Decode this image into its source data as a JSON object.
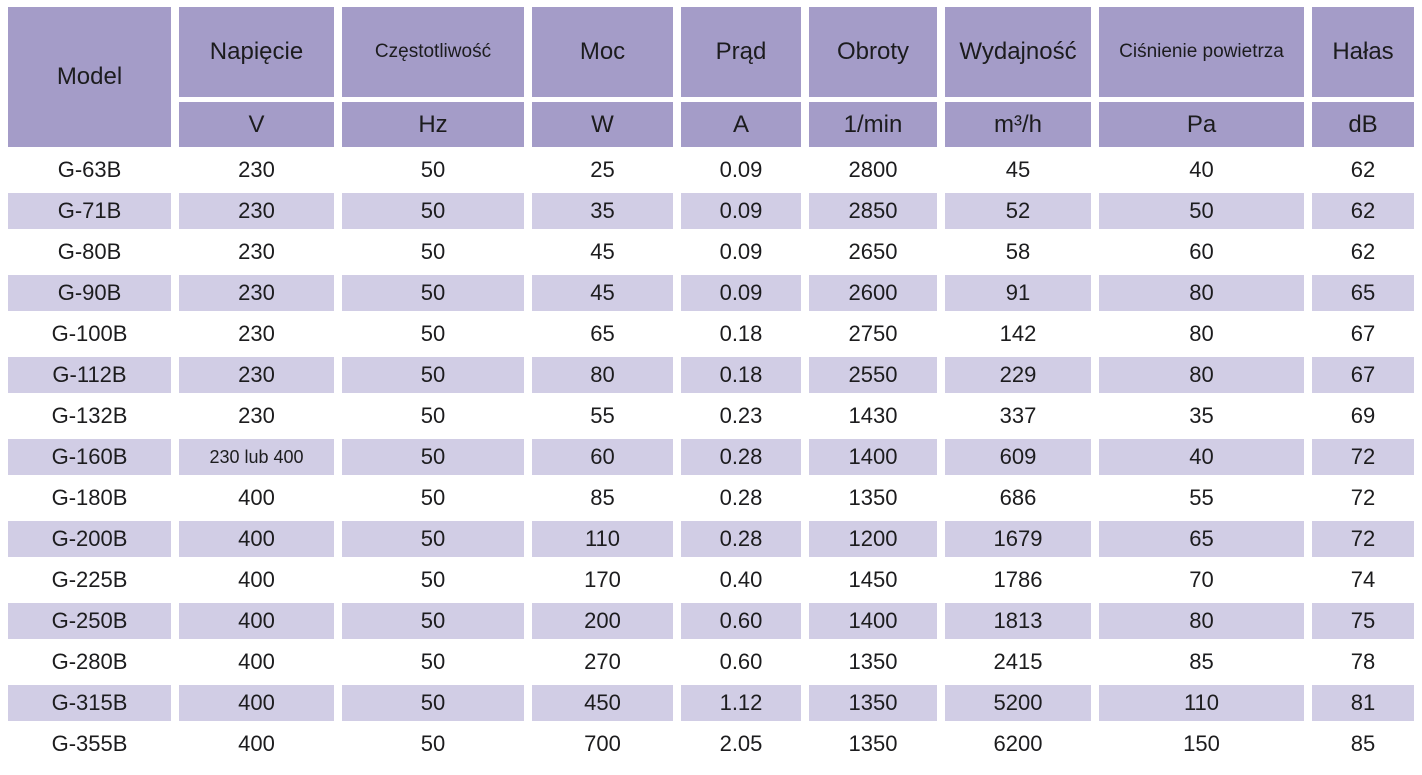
{
  "colors": {
    "header_bg": "#a49cc8",
    "stripe_bg": "#d1cde5",
    "text": "#1c1c1e",
    "page_bg": "#ffffff"
  },
  "table": {
    "columns": [
      {
        "label": "Model",
        "unit": ""
      },
      {
        "label": "Napięcie",
        "unit": "V"
      },
      {
        "label": "Częstotliwość",
        "unit": "Hz"
      },
      {
        "label": "Moc",
        "unit": "W"
      },
      {
        "label": "Prąd",
        "unit": "A"
      },
      {
        "label": "Obroty",
        "unit": "1/min"
      },
      {
        "label": "Wydajność",
        "unit": "m³/h"
      },
      {
        "label": "Ciśnienie powietrza",
        "unit": "Pa"
      },
      {
        "label": "Hałas",
        "unit": "dB"
      }
    ],
    "rows": [
      [
        "G-63B",
        "230",
        "50",
        "25",
        "0.09",
        "2800",
        "45",
        "40",
        "62"
      ],
      [
        "G-71B",
        "230",
        "50",
        "35",
        "0.09",
        "2850",
        "52",
        "50",
        "62"
      ],
      [
        "G-80B",
        "230",
        "50",
        "45",
        "0.09",
        "2650",
        "58",
        "60",
        "62"
      ],
      [
        "G-90B",
        "230",
        "50",
        "45",
        "0.09",
        "2600",
        "91",
        "80",
        "65"
      ],
      [
        "G-100B",
        "230",
        "50",
        "65",
        "0.18",
        "2750",
        "142",
        "80",
        "67"
      ],
      [
        "G-112B",
        "230",
        "50",
        "80",
        "0.18",
        "2550",
        "229",
        "80",
        "67"
      ],
      [
        "G-132B",
        "230",
        "50",
        "55",
        "0.23",
        "1430",
        "337",
        "35",
        "69"
      ],
      [
        "G-160B",
        "230 lub 400",
        "50",
        "60",
        "0.28",
        "1400",
        "609",
        "40",
        "72"
      ],
      [
        "G-180B",
        "400",
        "50",
        "85",
        "0.28",
        "1350",
        "686",
        "55",
        "72"
      ],
      [
        "G-200B",
        "400",
        "50",
        "110",
        "0.28",
        "1200",
        "1679",
        "65",
        "72"
      ],
      [
        "G-225B",
        "400",
        "50",
        "170",
        "0.40",
        "1450",
        "1786",
        "70",
        "74"
      ],
      [
        "G-250B",
        "400",
        "50",
        "200",
        "0.60",
        "1400",
        "1813",
        "80",
        "75"
      ],
      [
        "G-280B",
        "400",
        "50",
        "270",
        "0.60",
        "1350",
        "2415",
        "85",
        "78"
      ],
      [
        "G-315B",
        "400",
        "50",
        "450",
        "1.12",
        "1350",
        "5200",
        "110",
        "81"
      ],
      [
        "G-355B",
        "400",
        "50",
        "700",
        "2.05",
        "1350",
        "6200",
        "150",
        "85"
      ]
    ]
  }
}
